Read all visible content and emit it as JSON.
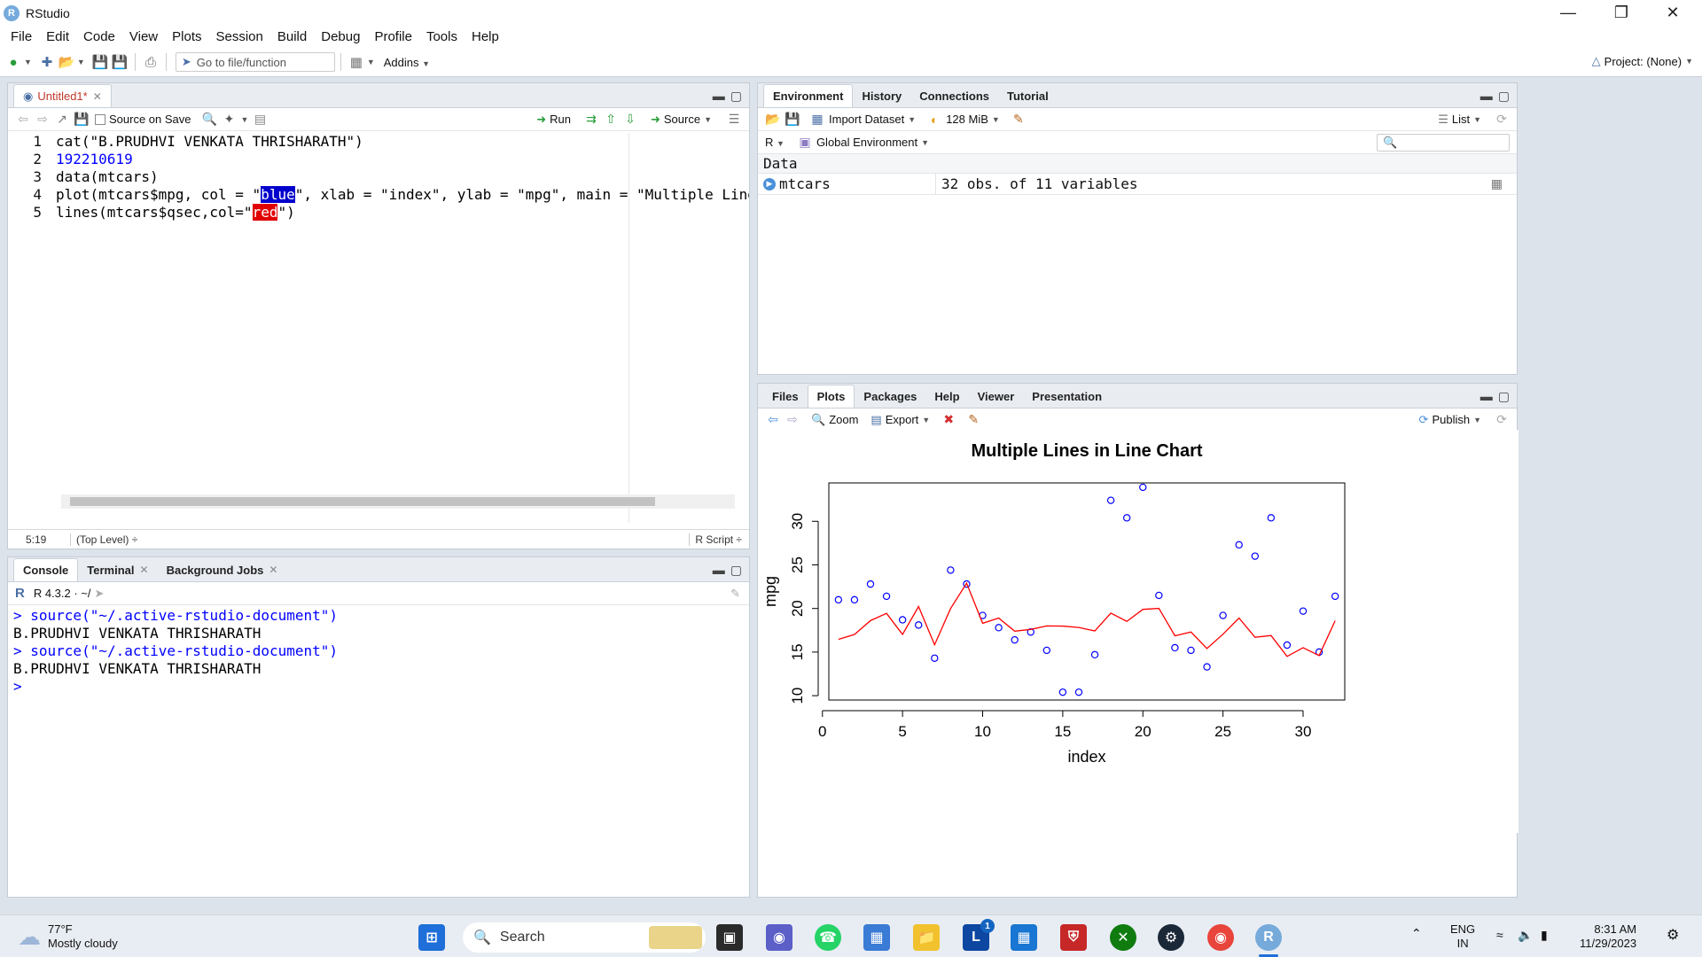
{
  "window": {
    "title": "RStudio",
    "app_logo": "R"
  },
  "menu": [
    "File",
    "Edit",
    "Code",
    "View",
    "Plots",
    "Session",
    "Build",
    "Debug",
    "Profile",
    "Tools",
    "Help"
  ],
  "toolbar": {
    "goto_placeholder": "Go to file/function",
    "addins_label": "Addins",
    "project_label": "Project: (None)"
  },
  "editor": {
    "tab_label": "Untitled1*",
    "source_on_save_label": "Source on Save",
    "run_label": "Run",
    "source_label": "Source",
    "lines": [
      {
        "num": "1",
        "text": "cat(\"B.PRUDHVI VENKATA THRISHARATH\")"
      },
      {
        "num": "2",
        "text": "192210619"
      },
      {
        "num": "3",
        "text": "data(mtcars)"
      },
      {
        "num": "4",
        "pre": "plot(mtcars$mpg, col = \"",
        "hl": "blue",
        "post": "\", xlab = \"index\", ylab = \"mpg\", main = \"Multiple Lines in Line Chart"
      },
      {
        "num": "5",
        "pre": "lines(mtcars$qsec,col=\"",
        "hl": "red",
        "post": "\")"
      }
    ],
    "status_position": "5:19",
    "status_scope": "(Top Level) ÷",
    "status_type": "R Script ÷"
  },
  "console": {
    "tabs": [
      "Console",
      "Terminal",
      "Background Jobs"
    ],
    "version_line": "R 4.3.2 · ~/",
    "lines": [
      {
        "type": "cmd",
        "text": "> source(\"~/.active-rstudio-document\")"
      },
      {
        "type": "out",
        "text": "B.PRUDHVI VENKATA THRISHARATH"
      },
      {
        "type": "cmd",
        "text": "> source(\"~/.active-rstudio-document\")"
      },
      {
        "type": "out",
        "text": "B.PRUDHVI VENKATA THRISHARATH"
      },
      {
        "type": "cmd",
        "text": "> "
      }
    ]
  },
  "environment": {
    "tabs": [
      "Environment",
      "History",
      "Connections",
      "Tutorial"
    ],
    "import_label": "Import Dataset",
    "memory_label": "128 MiB",
    "list_label": "List",
    "lang_label": "R",
    "scope_label": "Global Environment",
    "section_label": "Data",
    "rows": [
      {
        "name": "mtcars",
        "value": "32 obs. of 11 variables"
      }
    ]
  },
  "files_pane": {
    "tabs": [
      "Files",
      "Plots",
      "Packages",
      "Help",
      "Viewer",
      "Presentation"
    ],
    "zoom_label": "Zoom",
    "export_label": "Export",
    "publish_label": "Publish"
  },
  "chart_data": {
    "type": "scatter",
    "title": "Multiple Lines in Line Chart",
    "xlabel": "index",
    "ylabel": "mpg",
    "xlim": [
      0.4,
      32.6
    ],
    "ylim": [
      9.5,
      34.4
    ],
    "xticks": [
      0,
      5,
      10,
      15,
      20,
      25,
      30
    ],
    "yticks": [
      10,
      15,
      20,
      25,
      30
    ],
    "series": [
      {
        "kind": "points",
        "color": "#0000ff",
        "x": [
          1,
          2,
          3,
          4,
          5,
          6,
          7,
          8,
          9,
          10,
          11,
          12,
          13,
          14,
          15,
          16,
          17,
          18,
          19,
          20,
          21,
          22,
          23,
          24,
          25,
          26,
          27,
          28,
          29,
          30,
          31,
          32
        ],
        "values": [
          21.0,
          21.0,
          22.8,
          21.4,
          18.7,
          18.1,
          14.3,
          24.4,
          22.8,
          19.2,
          17.8,
          16.4,
          17.3,
          15.2,
          10.4,
          10.4,
          14.7,
          32.4,
          30.4,
          33.9,
          21.5,
          15.5,
          15.2,
          13.3,
          19.2,
          27.3,
          26.0,
          30.4,
          15.8,
          19.7,
          15.0,
          21.4
        ]
      },
      {
        "kind": "line",
        "color": "#ff0000",
        "x": [
          1,
          2,
          3,
          4,
          5,
          6,
          7,
          8,
          9,
          10,
          11,
          12,
          13,
          14,
          15,
          16,
          17,
          18,
          19,
          20,
          21,
          22,
          23,
          24,
          25,
          26,
          27,
          28,
          29,
          30,
          31,
          32
        ],
        "values": [
          16.46,
          17.02,
          18.61,
          19.44,
          17.02,
          20.22,
          15.84,
          20.0,
          22.9,
          18.3,
          18.9,
          17.4,
          17.6,
          18.0,
          17.98,
          17.82,
          17.42,
          19.47,
          18.52,
          19.9,
          20.01,
          16.87,
          17.3,
          15.41,
          17.05,
          18.9,
          16.7,
          16.9,
          14.5,
          15.5,
          14.6,
          18.6
        ]
      }
    ]
  },
  "taskbar": {
    "weather_temp": "77°F",
    "weather_desc": "Mostly cloudy",
    "search_label": "Search",
    "lang_line1": "ENG",
    "lang_line2": "IN",
    "time": "8:31 AM",
    "date": "11/29/2023",
    "badge": "1"
  }
}
